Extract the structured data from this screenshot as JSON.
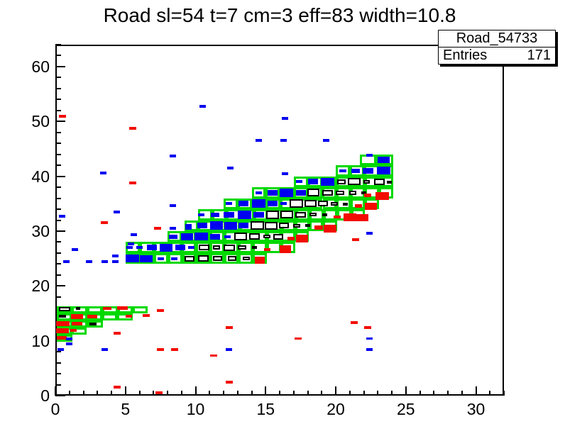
{
  "title": "Road sl=54 t=7 cm=3 eff=83 width=10.8",
  "stats": {
    "name": "Road_54733",
    "entries_label": "Entries",
    "entries_value": "171"
  },
  "chart_data": {
    "type": "scatter",
    "title": "Road sl=54 t=7 cm=3 eff=83 width=10.8",
    "xlabel": "",
    "ylabel": "",
    "xlim": [
      0,
      32
    ],
    "ylim": [
      0,
      64
    ],
    "x_ticks": [
      0,
      5,
      10,
      15,
      20,
      25,
      30
    ],
    "y_ticks": [
      0,
      10,
      20,
      30,
      40,
      50,
      60
    ],
    "x_minor_step": 1,
    "y_minor_step": 2,
    "grid": false,
    "legend": "none",
    "colors": {
      "road": "#00d800",
      "hit_left": "#0000f0",
      "hit_right": "#f20c00",
      "hit_intime": "#ffffff"
    },
    "road_rows": [
      [
        24.0,
        26.0,
        5.0,
        15.1,
        10
      ],
      [
        26.0,
        28.0,
        5.0,
        17.1,
        12
      ],
      [
        28.0,
        30.0,
        8.0,
        18.1,
        10
      ],
      [
        30.0,
        32.0,
        9.2,
        20.1,
        11
      ],
      [
        32.0,
        34.0,
        10.2,
        22.1,
        12
      ],
      [
        34.0,
        36.0,
        12.0,
        23.1,
        11
      ],
      [
        36.0,
        38.0,
        14.0,
        24.1,
        10
      ],
      [
        38.0,
        40.0,
        17.0,
        24.1,
        7
      ],
      [
        40.0,
        42.0,
        20.0,
        24.1,
        4
      ],
      [
        42.0,
        44.0,
        21.7,
        24.1,
        2
      ],
      [
        15.05,
        16.35,
        0.1,
        6.6,
        6
      ],
      [
        13.75,
        15.05,
        0.1,
        5.5,
        5
      ],
      [
        12.45,
        13.75,
        0.1,
        3.4,
        3
      ],
      [
        11.15,
        12.45,
        0.1,
        2.25,
        2
      ],
      [
        9.85,
        11.15,
        0.1,
        1.2,
        1
      ]
    ],
    "hits": [
      [
        5.5,
        25,
        0.95,
        1.5,
        "b"
      ],
      [
        6.5,
        25,
        0.9,
        1.3,
        "b"
      ],
      [
        7.5,
        25,
        0.45,
        0.5,
        "b"
      ],
      [
        8.5,
        25,
        0.45,
        0.5,
        "b"
      ],
      [
        9.55,
        25,
        0.7,
        1.0,
        "w"
      ],
      [
        10.55,
        25,
        0.75,
        1.1,
        "w"
      ],
      [
        11.55,
        25,
        0.65,
        0.9,
        "w"
      ],
      [
        12.6,
        25,
        0.6,
        0.85,
        "w"
      ],
      [
        13.6,
        25,
        0.5,
        0.7,
        "w"
      ],
      [
        14.6,
        24.7,
        0.7,
        1.2,
        "r"
      ],
      [
        5.3,
        27,
        0.45,
        0.5,
        "b"
      ],
      [
        6.0,
        27,
        0.5,
        0.6,
        "b"
      ],
      [
        6.9,
        27,
        0.7,
        1.0,
        "b"
      ],
      [
        7.9,
        27,
        0.9,
        1.4,
        "b"
      ],
      [
        8.9,
        27,
        0.7,
        1.0,
        "b"
      ],
      [
        9.7,
        27,
        0.45,
        0.5,
        "b"
      ],
      [
        10.6,
        27,
        0.75,
        1.1,
        "w"
      ],
      [
        11.5,
        27,
        0.5,
        0.7,
        "w"
      ],
      [
        12.4,
        27,
        0.8,
        1.2,
        "w"
      ],
      [
        13.3,
        27,
        0.6,
        0.85,
        "w"
      ],
      [
        14.2,
        27,
        0.4,
        0.55,
        "w"
      ],
      [
        15.1,
        26.6,
        0.45,
        0.5,
        "r"
      ],
      [
        16.4,
        26.7,
        0.85,
        1.3,
        "r"
      ],
      [
        8.4,
        29,
        0.6,
        0.8,
        "b"
      ],
      [
        9.4,
        29,
        0.85,
        1.3,
        "b"
      ],
      [
        10.4,
        29,
        0.95,
        1.5,
        "b"
      ],
      [
        11.4,
        29,
        0.7,
        1.0,
        "b"
      ],
      [
        12.3,
        29,
        0.45,
        0.5,
        "b"
      ],
      [
        13.2,
        29,
        0.9,
        1.4,
        "w"
      ],
      [
        14.2,
        29,
        0.75,
        1.1,
        "w"
      ],
      [
        15.1,
        29,
        0.5,
        0.7,
        "w"
      ],
      [
        15.9,
        29,
        0.7,
        1.0,
        "w"
      ],
      [
        16.8,
        28.6,
        0.5,
        0.6,
        "r"
      ],
      [
        17.6,
        28.6,
        0.9,
        1.4,
        "r"
      ],
      [
        9.5,
        31,
        0.45,
        0.5,
        "b"
      ],
      [
        10.5,
        31,
        0.7,
        1.0,
        "b"
      ],
      [
        11.5,
        31,
        0.95,
        1.5,
        "b"
      ],
      [
        12.5,
        31,
        0.9,
        1.4,
        "b"
      ],
      [
        13.4,
        31,
        0.7,
        1.0,
        "b"
      ],
      [
        14.4,
        31,
        0.95,
        1.5,
        "w"
      ],
      [
        15.4,
        31,
        0.9,
        1.4,
        "w"
      ],
      [
        16.3,
        31,
        0.75,
        1.1,
        "w"
      ],
      [
        17.2,
        31,
        0.5,
        0.7,
        "w"
      ],
      [
        18.0,
        31,
        0.35,
        0.45,
        "w"
      ],
      [
        18.8,
        30.6,
        0.6,
        0.8,
        "r"
      ],
      [
        19.6,
        30.5,
        0.9,
        1.4,
        "r"
      ],
      [
        10.4,
        33,
        0.45,
        0.5,
        "b"
      ],
      [
        11.4,
        33,
        0.6,
        0.8,
        "b"
      ],
      [
        12.4,
        33,
        0.75,
        1.1,
        "b"
      ],
      [
        13.5,
        33,
        0.95,
        1.5,
        "b"
      ],
      [
        14.5,
        33,
        0.75,
        1.1,
        "b"
      ],
      [
        15.5,
        33,
        0.95,
        1.5,
        "w"
      ],
      [
        16.5,
        33,
        0.9,
        1.4,
        "w"
      ],
      [
        17.5,
        33,
        0.75,
        1.1,
        "w"
      ],
      [
        18.4,
        33,
        0.5,
        0.7,
        "w"
      ],
      [
        19.2,
        33,
        0.35,
        0.45,
        "w"
      ],
      [
        20.1,
        32.6,
        0.5,
        0.6,
        "r"
      ],
      [
        21.0,
        32.5,
        0.9,
        1.4,
        "r"
      ],
      [
        21.9,
        32.5,
        0.85,
        1.3,
        "r"
      ],
      [
        12.4,
        35,
        0.45,
        0.5,
        "b"
      ],
      [
        13.4,
        35,
        0.7,
        1.0,
        "b"
      ],
      [
        14.5,
        35,
        0.95,
        1.5,
        "b"
      ],
      [
        15.5,
        35,
        0.7,
        1.0,
        "b"
      ],
      [
        16.3,
        35,
        0.45,
        0.5,
        "b"
      ],
      [
        17.2,
        35,
        0.95,
        1.5,
        "w"
      ],
      [
        18.2,
        35,
        0.9,
        1.3,
        "w"
      ],
      [
        19.1,
        35,
        0.7,
        1.0,
        "w"
      ],
      [
        19.9,
        35,
        0.5,
        0.7,
        "w"
      ],
      [
        20.7,
        35,
        0.35,
        0.45,
        "w"
      ],
      [
        21.6,
        34.6,
        0.5,
        0.6,
        "r"
      ],
      [
        22.5,
        34.5,
        0.85,
        1.3,
        "r"
      ],
      [
        14.5,
        37,
        0.45,
        0.5,
        "b"
      ],
      [
        15.5,
        37,
        0.7,
        1.0,
        "b"
      ],
      [
        16.5,
        37,
        0.95,
        1.5,
        "b"
      ],
      [
        17.5,
        37,
        0.7,
        1.0,
        "b"
      ],
      [
        18.4,
        37,
        0.9,
        1.4,
        "w"
      ],
      [
        19.4,
        37,
        0.75,
        1.1,
        "w"
      ],
      [
        20.3,
        37,
        0.6,
        0.85,
        "w"
      ],
      [
        21.2,
        37,
        0.5,
        0.7,
        "w"
      ],
      [
        22.0,
        37,
        0.35,
        0.45,
        "w"
      ],
      [
        22.3,
        36.5,
        0.5,
        0.6,
        "r"
      ],
      [
        23.3,
        36.4,
        0.95,
        1.5,
        "r"
      ],
      [
        17.4,
        39,
        0.45,
        0.5,
        "b"
      ],
      [
        18.4,
        39,
        0.7,
        1.0,
        "b"
      ],
      [
        19.4,
        39,
        0.95,
        1.5,
        "b"
      ],
      [
        20.4,
        39,
        0.6,
        0.85,
        "w"
      ],
      [
        21.3,
        39,
        0.9,
        1.3,
        "w"
      ],
      [
        22.2,
        39,
        0.5,
        0.7,
        "w"
      ],
      [
        23.1,
        39,
        0.75,
        1.1,
        "w"
      ],
      [
        23.8,
        39,
        0.35,
        0.45,
        "w"
      ],
      [
        20.5,
        41,
        0.5,
        0.6,
        "b"
      ],
      [
        21.4,
        41,
        0.6,
        0.8,
        "b"
      ],
      [
        22.3,
        41,
        0.75,
        1.1,
        "b"
      ],
      [
        23.4,
        41,
        0.95,
        1.4,
        "b"
      ],
      [
        23.4,
        43,
        0.85,
        1.2,
        "b"
      ],
      [
        0.65,
        15.8,
        0.8,
        0.8,
        "w"
      ],
      [
        1.6,
        15.9,
        0.3,
        0.4,
        "w"
      ],
      [
        3.7,
        15.9,
        0.65,
        0.6,
        "r"
      ],
      [
        4.8,
        15.95,
        0.75,
        0.65,
        "r"
      ],
      [
        0.5,
        14.45,
        0.5,
        0.55,
        "w"
      ],
      [
        1.55,
        14.4,
        0.9,
        0.85,
        "r"
      ],
      [
        2.65,
        14.45,
        0.7,
        0.6,
        "r"
      ],
      [
        5.25,
        14.5,
        0.45,
        0.5,
        "r"
      ],
      [
        0.55,
        13.1,
        0.95,
        0.9,
        "r"
      ],
      [
        1.55,
        13.15,
        0.75,
        0.7,
        "r"
      ],
      [
        2.7,
        13.1,
        0.5,
        0.5,
        "w"
      ],
      [
        0.5,
        11.8,
        0.9,
        0.9,
        "r"
      ],
      [
        1.3,
        11.85,
        0.45,
        0.5,
        "r"
      ],
      [
        0.45,
        10.5,
        0.7,
        0.7,
        "r"
      ],
      [
        0.5,
        50.9,
        0.5,
        0.5,
        "r"
      ],
      [
        10.5,
        52.8,
        0.45,
        0.5,
        "b"
      ],
      [
        5.5,
        48.7,
        0.5,
        0.5,
        "r"
      ],
      [
        16.4,
        50.5,
        0.45,
        0.5,
        "b"
      ],
      [
        14.5,
        46.6,
        0.45,
        0.5,
        "b"
      ],
      [
        16.3,
        46.6,
        0.45,
        0.5,
        "b"
      ],
      [
        19.3,
        46.6,
        0.45,
        0.5,
        "b"
      ],
      [
        8.4,
        43.7,
        0.45,
        0.5,
        "b"
      ],
      [
        22.4,
        43.8,
        0.45,
        0.5,
        "b"
      ],
      [
        3.4,
        40.6,
        0.45,
        0.5,
        "b"
      ],
      [
        12.5,
        41.5,
        0.45,
        0.5,
        "b"
      ],
      [
        16.4,
        40.5,
        0.45,
        0.5,
        "b"
      ],
      [
        5.5,
        38.8,
        0.5,
        0.5,
        "r"
      ],
      [
        8.4,
        34.7,
        0.45,
        0.5,
        "b"
      ],
      [
        4.4,
        33.5,
        0.45,
        0.5,
        "b"
      ],
      [
        0.5,
        32.7,
        0.45,
        0.5,
        "b"
      ],
      [
        3.5,
        31.5,
        0.5,
        0.5,
        "r"
      ],
      [
        7.3,
        30.5,
        0.5,
        0.5,
        "r"
      ],
      [
        8.4,
        30.5,
        0.45,
        0.5,
        "b"
      ],
      [
        9.5,
        30.5,
        0.45,
        0.5,
        "b"
      ],
      [
        22.4,
        29.6,
        0.45,
        0.5,
        "b"
      ],
      [
        21.4,
        28.4,
        0.5,
        0.5,
        "r"
      ],
      [
        0.8,
        24.4,
        0.45,
        0.5,
        "b"
      ],
      [
        2.4,
        24.4,
        0.45,
        0.5,
        "b"
      ],
      [
        3.5,
        24.4,
        0.45,
        0.5,
        "b"
      ],
      [
        4.3,
        24.4,
        0.45,
        0.5,
        "b"
      ],
      [
        4.3,
        25.5,
        0.45,
        0.5,
        "b"
      ],
      [
        1.4,
        26.6,
        0.45,
        0.5,
        "b"
      ],
      [
        5.4,
        27.7,
        0.45,
        0.5,
        "b"
      ],
      [
        5.6,
        29.3,
        0.45,
        0.5,
        "b"
      ],
      [
        7.5,
        15.5,
        0.5,
        0.5,
        "r"
      ],
      [
        6.5,
        14.6,
        0.5,
        0.5,
        "r"
      ],
      [
        4.4,
        11.4,
        0.5,
        0.5,
        "r"
      ],
      [
        12.4,
        12.4,
        0.5,
        0.5,
        "r"
      ],
      [
        17.3,
        10.4,
        0.5,
        0.5,
        "r"
      ],
      [
        21.3,
        13.3,
        0.5,
        0.5,
        "r"
      ],
      [
        22.3,
        12.4,
        0.5,
        0.5,
        "r"
      ],
      [
        22.4,
        10.4,
        0.45,
        0.5,
        "b"
      ],
      [
        1.0,
        10.3,
        0.45,
        0.5,
        "b"
      ],
      [
        1.0,
        9.4,
        0.45,
        0.5,
        "b"
      ],
      [
        0.4,
        8.4,
        0.45,
        0.5,
        "b"
      ],
      [
        3.5,
        8.4,
        0.45,
        0.5,
        "b"
      ],
      [
        7.5,
        8.4,
        0.5,
        0.5,
        "r"
      ],
      [
        8.5,
        8.4,
        0.5,
        0.5,
        "r"
      ],
      [
        12.4,
        8.4,
        0.45,
        0.5,
        "b"
      ],
      [
        22.4,
        8.4,
        0.45,
        0.5,
        "b"
      ],
      [
        11.3,
        7.3,
        0.5,
        0.5,
        "r"
      ],
      [
        4.4,
        1.5,
        0.5,
        0.5,
        "r"
      ],
      [
        12.4,
        2.5,
        0.5,
        0.5,
        "r"
      ],
      [
        7.4,
        0.5,
        0.5,
        0.5,
        "r"
      ]
    ]
  }
}
